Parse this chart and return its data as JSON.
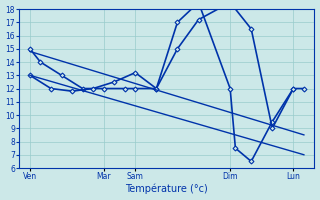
{
  "xlabel": "Température (°c)",
  "background_color": "#cce8e8",
  "grid_color": "#99cccc",
  "line_color": "#0033aa",
  "ylim": [
    6,
    18
  ],
  "yticks": [
    6,
    7,
    8,
    9,
    10,
    11,
    12,
    13,
    14,
    15,
    16,
    17,
    18
  ],
  "xlim": [
    0,
    28
  ],
  "xtick_positions": [
    1,
    8,
    11,
    20,
    26
  ],
  "xtick_labels": [
    "Ven",
    "Mar",
    "Sam",
    "Dim",
    "Lun"
  ],
  "series": [
    {
      "x": [
        1,
        2,
        4,
        6,
        8,
        10,
        11,
        13,
        15,
        17,
        20,
        20.5,
        22,
        24,
        26,
        27
      ],
      "y": [
        15,
        14,
        13,
        12,
        12,
        12,
        12,
        12,
        17,
        18.5,
        12,
        7.5,
        6.5,
        9.5,
        12,
        12
      ],
      "style": "-",
      "marker": "D",
      "markersize": 2.5,
      "linewidth": 1.2
    },
    {
      "x": [
        1,
        3,
        5,
        7,
        9,
        11,
        13,
        15,
        17,
        20,
        22,
        24,
        26
      ],
      "y": [
        13,
        12,
        11.8,
        12,
        12.5,
        13.2,
        12,
        15,
        17.2,
        18.5,
        16.5,
        9,
        12
      ],
      "style": "-",
      "marker": "D",
      "markersize": 2.5,
      "linewidth": 1.2
    },
    {
      "x": [
        1,
        27
      ],
      "y": [
        14.8,
        8.5
      ],
      "style": "-",
      "marker": "",
      "markersize": 0,
      "linewidth": 1.0
    },
    {
      "x": [
        1,
        27
      ],
      "y": [
        13,
        7.0
      ],
      "style": "-",
      "marker": "",
      "markersize": 0,
      "linewidth": 1.0
    }
  ]
}
